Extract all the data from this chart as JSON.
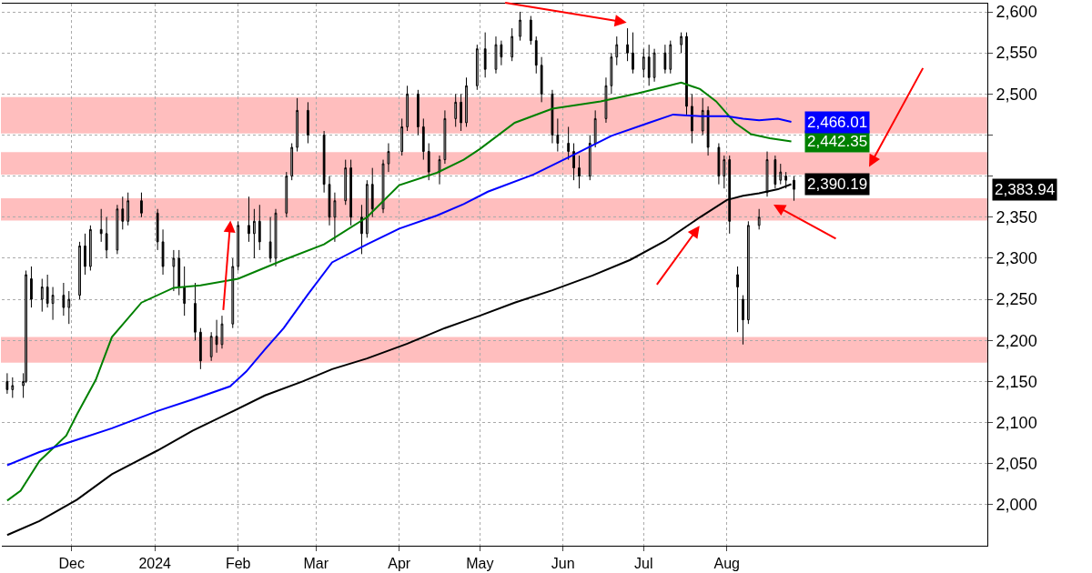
{
  "chart_data": {
    "type": "candlestick",
    "color": "#000000",
    "x": [
      "2023-11-07",
      "2023-11-09",
      "2023-11-13",
      "2023-11-14",
      "2023-11-16",
      "2023-11-20",
      "2023-11-22",
      "2023-11-24",
      "2023-11-28",
      "2023-11-30",
      "2023-12-04",
      "2023-12-06",
      "2023-12-08",
      "2023-12-12",
      "2023-12-14",
      "2023-12-18",
      "2023-12-20",
      "2023-12-22",
      "2023-12-27",
      "2024-01-02",
      "2024-01-04",
      "2024-01-08",
      "2024-01-10",
      "2024-01-12",
      "2024-01-16",
      "2024-01-18",
      "2024-01-22",
      "2024-01-24",
      "2024-01-26",
      "2024-01-30",
      "2024-02-01",
      "2024-02-05",
      "2024-02-07",
      "2024-02-09",
      "2024-02-13",
      "2024-02-15",
      "2024-02-19",
      "2024-02-21",
      "2024-02-23",
      "2024-02-27",
      "2024-03-04",
      "2024-03-06",
      "2024-03-08",
      "2024-03-12",
      "2024-03-14",
      "2024-03-18",
      "2024-03-20",
      "2024-03-22",
      "2024-03-26",
      "2024-03-28",
      "2024-04-02",
      "2024-04-04",
      "2024-04-08",
      "2024-04-10",
      "2024-04-12",
      "2024-04-16",
      "2024-04-18",
      "2024-04-22",
      "2024-04-24",
      "2024-04-26",
      "2024-04-30",
      "2024-05-03",
      "2024-05-07",
      "2024-05-09",
      "2024-05-13",
      "2024-05-16",
      "2024-05-20",
      "2024-05-22",
      "2024-05-24",
      "2024-05-28",
      "2024-05-30",
      "2024-06-03",
      "2024-06-05",
      "2024-06-07",
      "2024-06-11",
      "2024-06-13",
      "2024-06-17",
      "2024-06-19",
      "2024-06-21",
      "2024-06-25",
      "2024-06-27",
      "2024-07-01",
      "2024-07-03",
      "2024-07-05",
      "2024-07-09",
      "2024-07-11",
      "2024-07-15",
      "2024-07-17",
      "2024-07-19",
      "2024-07-23",
      "2024-07-25",
      "2024-07-29",
      "2024-07-31",
      "2024-08-02",
      "2024-08-05",
      "2024-08-07",
      "2024-08-09",
      "2024-08-13",
      "2024-08-16",
      "2024-08-19",
      "2024-08-21",
      "2024-08-23",
      "2024-08-26"
    ],
    "ohlc": [
      [
        2150,
        2160,
        2135,
        2140
      ],
      [
        2140,
        2155,
        2130,
        2145
      ],
      [
        2145,
        2160,
        2130,
        2150
      ],
      [
        2150,
        2285,
        2148,
        2280
      ],
      [
        2275,
        2290,
        2240,
        2250
      ],
      [
        2250,
        2275,
        2235,
        2265
      ],
      [
        2265,
        2280,
        2240,
        2245
      ],
      [
        2245,
        2265,
        2225,
        2255
      ],
      [
        2255,
        2270,
        2230,
        2240
      ],
      [
        2240,
        2260,
        2220,
        2250
      ],
      [
        2255,
        2320,
        2250,
        2315
      ],
      [
        2315,
        2330,
        2280,
        2290
      ],
      [
        2290,
        2340,
        2285,
        2335
      ],
      [
        2335,
        2360,
        2320,
        2330
      ],
      [
        2330,
        2350,
        2300,
        2310
      ],
      [
        2310,
        2365,
        2305,
        2360
      ],
      [
        2360,
        2375,
        2335,
        2345
      ],
      [
        2345,
        2380,
        2340,
        2370
      ],
      [
        2370,
        2380,
        2350,
        2355
      ],
      [
        2355,
        2360,
        2310,
        2320
      ],
      [
        2320,
        2335,
        2280,
        2290
      ],
      [
        2290,
        2310,
        2260,
        2300
      ],
      [
        2300,
        2310,
        2255,
        2265
      ],
      [
        2265,
        2290,
        2230,
        2245
      ],
      [
        2245,
        2270,
        2200,
        2210
      ],
      [
        2210,
        2215,
        2165,
        2175
      ],
      [
        2180,
        2210,
        2175,
        2205
      ],
      [
        2205,
        2225,
        2185,
        2195
      ],
      [
        2195,
        2230,
        2190,
        2220
      ],
      [
        2220,
        2300,
        2215,
        2290
      ],
      [
        2290,
        2345,
        2285,
        2340
      ],
      [
        2340,
        2375,
        2320,
        2330
      ],
      [
        2330,
        2360,
        2300,
        2345
      ],
      [
        2345,
        2365,
        2310,
        2320
      ],
      [
        2320,
        2350,
        2295,
        2300
      ],
      [
        2300,
        2360,
        2290,
        2355
      ],
      [
        2355,
        2405,
        2350,
        2400
      ],
      [
        2400,
        2440,
        2395,
        2435
      ],
      [
        2435,
        2495,
        2430,
        2480
      ],
      [
        2480,
        2490,
        2440,
        2450
      ],
      [
        2450,
        2455,
        2380,
        2390
      ],
      [
        2390,
        2400,
        2340,
        2350
      ],
      [
        2350,
        2380,
        2320,
        2370
      ],
      [
        2370,
        2420,
        2365,
        2410
      ],
      [
        2410,
        2420,
        2340,
        2350
      ],
      [
        2350,
        2365,
        2305,
        2330
      ],
      [
        2330,
        2395,
        2325,
        2390
      ],
      [
        2390,
        2410,
        2350,
        2360
      ],
      [
        2360,
        2420,
        2355,
        2415
      ],
      [
        2415,
        2440,
        2405,
        2430
      ],
      [
        2430,
        2470,
        2425,
        2460
      ],
      [
        2460,
        2510,
        2455,
        2500
      ],
      [
        2500,
        2505,
        2450,
        2460
      ],
      [
        2460,
        2470,
        2420,
        2430
      ],
      [
        2430,
        2440,
        2395,
        2405
      ],
      [
        2405,
        2425,
        2390,
        2420
      ],
      [
        2420,
        2480,
        2415,
        2470
      ],
      [
        2470,
        2500,
        2460,
        2490
      ],
      [
        2490,
        2500,
        2455,
        2465
      ],
      [
        2465,
        2520,
        2460,
        2510
      ],
      [
        2510,
        2560,
        2505,
        2555
      ],
      [
        2555,
        2575,
        2520,
        2530
      ],
      [
        2530,
        2570,
        2525,
        2560
      ],
      [
        2560,
        2565,
        2535,
        2545
      ],
      [
        2545,
        2580,
        2540,
        2570
      ],
      [
        2570,
        2600,
        2565,
        2590
      ],
      [
        2590,
        2595,
        2560,
        2565
      ],
      [
        2565,
        2570,
        2525,
        2535
      ],
      [
        2535,
        2545,
        2490,
        2500
      ],
      [
        2500,
        2505,
        2440,
        2450
      ],
      [
        2450,
        2470,
        2430,
        2440
      ],
      [
        2440,
        2460,
        2420,
        2430
      ],
      [
        2430,
        2440,
        2395,
        2410
      ],
      [
        2410,
        2425,
        2385,
        2400
      ],
      [
        2400,
        2450,
        2395,
        2440
      ],
      [
        2440,
        2480,
        2435,
        2470
      ],
      [
        2470,
        2520,
        2465,
        2510
      ],
      [
        2510,
        2550,
        2500,
        2545
      ],
      [
        2545,
        2570,
        2535,
        2560
      ],
      [
        2560,
        2580,
        2540,
        2550
      ],
      [
        2550,
        2575,
        2525,
        2530
      ],
      [
        2530,
        2555,
        2520,
        2545
      ],
      [
        2545,
        2560,
        2510,
        2520
      ],
      [
        2520,
        2555,
        2515,
        2550
      ],
      [
        2550,
        2560,
        2525,
        2530
      ],
      [
        2530,
        2565,
        2525,
        2560
      ],
      [
        2560,
        2575,
        2550,
        2570
      ],
      [
        2570,
        2575,
        2475,
        2485
      ],
      [
        2485,
        2500,
        2440,
        2455
      ],
      [
        2455,
        2495,
        2450,
        2480
      ],
      [
        2480,
        2485,
        2425,
        2435
      ],
      [
        2435,
        2440,
        2390,
        2400
      ],
      [
        2400,
        2425,
        2385,
        2420
      ],
      [
        2420,
        2425,
        2330,
        2345
      ],
      [
        2280,
        2290,
        2210,
        2265
      ],
      [
        2250,
        2255,
        2195,
        2225
      ],
      [
        2225,
        2345,
        2220,
        2340
      ],
      [
        2340,
        2360,
        2335,
        2350
      ],
      [
        2380,
        2430,
        2375,
        2420
      ],
      [
        2420,
        2425,
        2385,
        2390
      ],
      [
        2395,
        2415,
        2390,
        2405
      ],
      [
        2400,
        2405,
        2385,
        2395
      ],
      [
        2395,
        2400,
        2370,
        2383.94
      ]
    ],
    "value_labels": [
      null,
      null,
      null,
      null,
      null,
      null,
      null,
      null,
      null,
      null,
      null,
      null,
      null,
      null,
      null,
      null,
      null,
      null,
      null,
      null,
      null,
      null,
      null,
      null,
      null,
      null,
      null,
      null,
      null,
      null,
      null,
      null,
      null,
      null,
      null,
      null,
      null,
      null,
      null,
      null,
      null,
      null,
      null,
      null,
      null,
      null,
      null,
      null,
      null,
      null,
      null,
      null,
      null,
      null,
      null,
      null,
      null,
      null,
      null,
      null,
      null,
      null,
      null,
      null,
      null,
      null,
      null,
      null,
      null,
      null,
      null,
      null,
      null,
      null,
      null,
      null,
      null,
      null,
      null,
      null,
      null,
      null,
      null,
      null,
      null,
      null,
      null,
      null,
      null,
      null,
      null,
      null,
      null,
      null,
      null,
      null,
      null,
      null,
      null,
      null,
      null,
      null,
      "2,383.94"
    ],
    "series": [
      {
        "type": "line",
        "color": "#008000",
        "x": [
          "2023-11-07",
          "2023-11-12",
          "2023-11-19",
          "2023-11-29",
          "2023-12-03",
          "2023-12-10",
          "2023-12-16",
          "2023-12-27",
          "2024-01-08",
          "2024-01-18",
          "2024-02-01",
          "2024-02-18",
          "2024-03-04",
          "2024-03-20",
          "2024-04-01",
          "2024-04-15",
          "2024-04-25",
          "2024-05-01",
          "2024-05-14",
          "2024-05-28",
          "2024-06-15",
          "2024-06-29",
          "2024-07-09",
          "2024-07-15",
          "2024-07-22",
          "2024-07-28",
          "2024-08-04",
          "2024-08-10",
          "2024-08-17",
          "2024-08-25"
        ],
        "values": [
          2005,
          2017,
          2053,
          2084,
          2110,
          2152,
          2204,
          2246,
          2264,
          2267,
          2275,
          2298,
          2317,
          2350,
          2389,
          2404,
          2420,
          2433,
          2465,
          2482,
          2491,
          2501,
          2509,
          2514,
          2506,
          2491,
          2465,
          2451,
          2446,
          2442.35
        ],
        "value_labels": [
          null,
          null,
          null,
          null,
          null,
          null,
          null,
          null,
          null,
          null,
          null,
          null,
          null,
          null,
          null,
          null,
          null,
          null,
          null,
          null,
          null,
          null,
          null,
          null,
          null,
          null,
          null,
          null,
          null,
          "2,442.35"
        ]
      },
      {
        "type": "line",
        "color": "#0000ff",
        "x": [
          "2023-11-07",
          "2023-11-19",
          "2023-12-03",
          "2023-12-16",
          "2024-01-02",
          "2024-01-15",
          "2024-01-29",
          "2024-02-04",
          "2024-02-11",
          "2024-02-18",
          "2024-02-27",
          "2024-03-07",
          "2024-03-20",
          "2024-04-01",
          "2024-04-15",
          "2024-04-25",
          "2024-05-04",
          "2024-05-21",
          "2024-06-05",
          "2024-06-19",
          "2024-07-03",
          "2024-07-12",
          "2024-07-22",
          "2024-08-01",
          "2024-08-07",
          "2024-08-13",
          "2024-08-20",
          "2024-08-25"
        ],
        "values": [
          2048,
          2064,
          2079,
          2093,
          2114,
          2128,
          2144,
          2162,
          2189,
          2215,
          2256,
          2295,
          2317,
          2336,
          2352,
          2366,
          2381,
          2402,
          2426,
          2449,
          2465,
          2475,
          2473,
          2473,
          2470,
          2468,
          2470,
          2466.01
        ],
        "value_labels": [
          null,
          null,
          null,
          null,
          null,
          null,
          null,
          null,
          null,
          null,
          null,
          null,
          null,
          null,
          null,
          null,
          null,
          null,
          null,
          null,
          null,
          null,
          null,
          null,
          null,
          null,
          null,
          "2,466.01"
        ]
      },
      {
        "type": "line",
        "color": "#000000",
        "x": [
          "2023-11-07",
          "2023-11-19",
          "2023-12-03",
          "2023-12-16",
          "2024-01-02",
          "2024-01-15",
          "2024-01-29",
          "2024-02-11",
          "2024-02-25",
          "2024-03-07",
          "2024-03-20",
          "2024-04-04",
          "2024-04-18",
          "2024-05-01",
          "2024-05-14",
          "2024-05-28",
          "2024-06-12",
          "2024-06-26",
          "2024-07-09",
          "2024-07-22",
          "2024-08-01",
          "2024-08-07",
          "2024-08-13",
          "2024-08-20",
          "2024-08-25"
        ],
        "values": [
          1963,
          1980,
          2006,
          2037,
          2066,
          2090,
          2112,
          2133,
          2150,
          2165,
          2178,
          2196,
          2215,
          2230,
          2246,
          2261,
          2279,
          2298,
          2321,
          2350,
          2371,
          2376,
          2379,
          2384,
          2390.19
        ],
        "value_labels": [
          null,
          null,
          null,
          null,
          null,
          null,
          null,
          null,
          null,
          null,
          null,
          null,
          null,
          null,
          null,
          null,
          null,
          null,
          null,
          null,
          null,
          null,
          null,
          null,
          "2,390.19"
        ]
      }
    ],
    "bands": [
      {
        "axis": "y",
        "from": 2174,
        "to": 2203,
        "color": "#ff0000"
      },
      {
        "axis": "y",
        "from": 2347,
        "to": 2372,
        "color": "#ff0000"
      },
      {
        "axis": "y",
        "from": 2403,
        "to": 2428,
        "color": "#ff0000"
      },
      {
        "axis": "y",
        "from": 2453,
        "to": 2495,
        "color": "#ff0000"
      }
    ],
    "xlim": [
      "2023-11-05",
      "2024-11-06"
    ],
    "xticks": [
      {
        "value": "2023-12-01",
        "label": "Dec"
      },
      {
        "value": "2024-01-01",
        "label": "2024"
      },
      {
        "value": "2024-02-01",
        "label": "Feb"
      },
      {
        "value": "2024-03-01",
        "label": "Mar"
      },
      {
        "value": "2024-04-01",
        "label": "Apr"
      },
      {
        "value": "2024-05-01",
        "label": "May"
      },
      {
        "value": "2024-06-01",
        "label": "Jun"
      },
      {
        "value": "2024-07-01",
        "label": "Jul"
      },
      {
        "value": "2024-08-01",
        "label": "Aug"
      }
    ],
    "ylim": [
      1950,
      2610
    ],
    "yticks": [
      {
        "value": 2000,
        "label": "2,000"
      },
      {
        "value": 2050,
        "label": "2,050"
      },
      {
        "value": 2100,
        "label": "2,100"
      },
      {
        "value": 2150,
        "label": "2,150"
      },
      {
        "value": 2200,
        "label": "2,200"
      },
      {
        "value": 2250,
        "label": "2,250"
      },
      {
        "value": 2300,
        "label": "2,300"
      },
      {
        "value": 2350,
        "label": "2,350"
      },
      {
        "value": 2400,
        "label": null
      },
      {
        "value": 2450,
        "label": null
      },
      {
        "value": 2500,
        "label": "2,500"
      },
      {
        "value": 2550,
        "label": "2,550"
      },
      {
        "value": 2600,
        "label": "2,600"
      }
    ],
    "grid": true
  }
}
